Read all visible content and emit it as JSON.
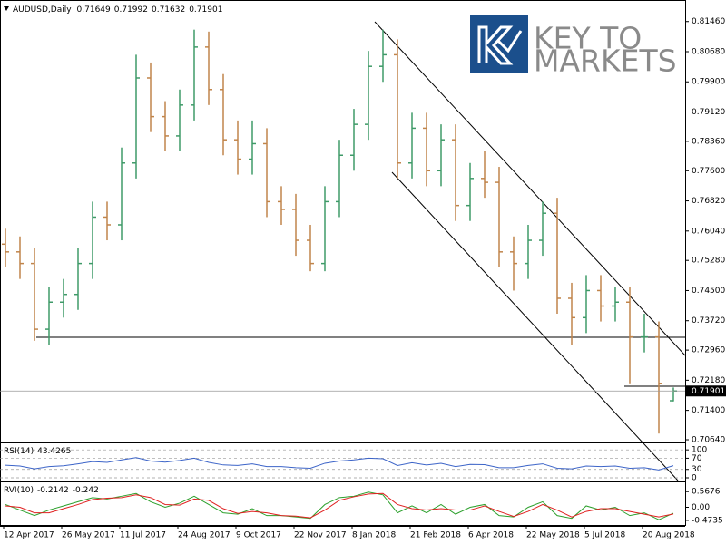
{
  "chart_data": {
    "type": "ohlc",
    "title": "AUDUSD,Daily",
    "logo_text": [
      "KEY TO",
      "MARKETS"
    ],
    "categories": [
      "12 Apr 2017",
      null,
      null,
      null,
      "26 May 2017",
      null,
      null,
      null,
      "11 Jul 2017",
      null,
      null,
      null,
      "24 Aug 2017",
      null,
      null,
      null,
      "9 Oct 2017",
      null,
      null,
      null,
      "22 Nov 2017",
      null,
      null,
      null,
      "8 Jan 2018",
      null,
      null,
      null,
      "21 Feb 2018",
      null,
      null,
      null,
      "6 Apr 2018",
      null,
      null,
      null,
      "22 May 2018",
      null,
      null,
      null,
      "5 Jul 2018",
      null,
      null,
      null,
      "20 Aug 2018",
      null,
      null
    ],
    "open": [
      0.757,
      0.755,
      0.752,
      0.735,
      0.742,
      0.744,
      0.752,
      0.764,
      0.762,
      0.778,
      0.8,
      0.79,
      0.785,
      0.793,
      0.808,
      0.797,
      0.784,
      0.779,
      0.783,
      0.768,
      0.766,
      0.758,
      0.752,
      0.768,
      0.78,
      0.788,
      0.803,
      0.806,
      0.778,
      0.787,
      0.776,
      0.784,
      0.767,
      0.774,
      0.773,
      0.755,
      0.752,
      0.758,
      0.765,
      0.743,
      0.738,
      0.745,
      0.741,
      0.742,
      0.733,
      0.733,
      0.71649
    ],
    "high": [
      0.761,
      0.759,
      0.756,
      0.746,
      0.748,
      0.756,
      0.768,
      0.768,
      0.782,
      0.806,
      0.804,
      0.794,
      0.797,
      0.8125,
      0.812,
      0.801,
      0.789,
      0.789,
      0.787,
      0.772,
      0.77,
      0.762,
      0.772,
      0.784,
      0.792,
      0.807,
      0.8125,
      0.81,
      0.791,
      0.791,
      0.788,
      0.788,
      0.778,
      0.781,
      0.777,
      0.759,
      0.762,
      0.768,
      0.769,
      0.747,
      0.749,
      0.749,
      0.746,
      0.746,
      0.739,
      0.737,
      0.71992
    ],
    "low": [
      0.751,
      0.748,
      0.732,
      0.731,
      0.738,
      0.74,
      0.748,
      0.758,
      0.758,
      0.774,
      0.786,
      0.781,
      0.781,
      0.789,
      0.793,
      0.78,
      0.775,
      0.775,
      0.764,
      0.762,
      0.754,
      0.75,
      0.75,
      0.764,
      0.776,
      0.784,
      0.799,
      0.774,
      0.774,
      0.772,
      0.772,
      0.763,
      0.763,
      0.769,
      0.751,
      0.745,
      0.748,
      0.754,
      0.739,
      0.731,
      0.734,
      0.737,
      0.737,
      0.721,
      0.729,
      0.708,
      0.71632
    ],
    "close": [
      0.755,
      0.752,
      0.735,
      0.742,
      0.744,
      0.752,
      0.764,
      0.762,
      0.778,
      0.8,
      0.79,
      0.785,
      0.793,
      0.808,
      0.797,
      0.784,
      0.779,
      0.783,
      0.768,
      0.766,
      0.758,
      0.752,
      0.768,
      0.78,
      0.788,
      0.803,
      0.806,
      0.778,
      0.787,
      0.776,
      0.784,
      0.767,
      0.774,
      0.773,
      0.755,
      0.752,
      0.758,
      0.765,
      0.743,
      0.738,
      0.745,
      0.741,
      0.742,
      0.733,
      0.733,
      0.721,
      0.71901
    ],
    "up_color": "#3f9a68",
    "down_color": "#c0844a",
    "ylim": [
      0.7057,
      0.8197
    ],
    "yticks": [
      {
        "value": 0.8146,
        "label": "0.81460"
      },
      {
        "value": 0.8068,
        "label": "0.80680"
      },
      {
        "value": 0.799,
        "label": "0.79900"
      },
      {
        "value": 0.7912,
        "label": "0.79120"
      },
      {
        "value": 0.7836,
        "label": "0.78360"
      },
      {
        "value": 0.776,
        "label": "0.77600"
      },
      {
        "value": 0.7682,
        "label": "0.76820"
      },
      {
        "value": 0.7604,
        "label": "0.76040"
      },
      {
        "value": 0.7528,
        "label": "0.75280"
      },
      {
        "value": 0.745,
        "label": "0.74500"
      },
      {
        "value": 0.7372,
        "label": "0.73720"
      },
      {
        "value": 0.7296,
        "label": "0.72960"
      },
      {
        "value": 0.7218,
        "label": "0.72180"
      },
      {
        "value": 0.714,
        "label": "0.71400"
      },
      {
        "value": 0.7064,
        "label": "0.70640"
      }
    ],
    "indicators": [
      {
        "name": "RSI(14)",
        "type": "line",
        "ylim": [
          -13,
          120
        ],
        "yticks": [
          100,
          70,
          30,
          0
        ],
        "grid": true,
        "series": [
          {
            "color": "#3c64c8",
            "values": [
              45,
              42,
              32,
              40,
              43,
              50,
              58,
              55,
              64,
              72,
              60,
              56,
              62,
              70,
              55,
              46,
              44,
              50,
              40,
              40,
              36,
              34,
              52,
              60,
              64,
              70,
              68,
              44,
              54,
              46,
              52,
              40,
              48,
              47,
              36,
              36,
              44,
              50,
              34,
              32,
              42,
              40,
              42,
              34,
              36,
              28,
              43.4265
            ]
          }
        ]
      },
      {
        "name": "RVI(10)",
        "type": "line",
        "ylim": [
          -0.64,
          0.87
        ],
        "yticks": [
          0.5676,
          {
            "value": 0,
            "label": "0.00"
          },
          -0.4735
        ],
        "grid": false,
        "series": [
          {
            "color": "#2ca02c",
            "values": [
              0.1,
              -0.1,
              -0.3,
              -0.1,
              0.05,
              0.2,
              0.35,
              0.3,
              0.4,
              0.5,
              0.2,
              0.0,
              0.15,
              0.4,
              0.1,
              -0.2,
              -0.25,
              -0.05,
              -0.3,
              -0.3,
              -0.35,
              -0.4,
              0.1,
              0.35,
              0.4,
              0.55,
              0.45,
              -0.2,
              0.05,
              -0.2,
              0.1,
              -0.25,
              0.0,
              0.1,
              -0.3,
              -0.35,
              0.0,
              0.2,
              -0.3,
              -0.4,
              0.05,
              -0.1,
              0.0,
              -0.3,
              -0.2,
              -0.45,
              -0.2142
            ]
          },
          {
            "color": "#e02020",
            "values": [
              0.05,
              0.0,
              -0.2,
              -0.2,
              -0.05,
              0.1,
              0.28,
              0.33,
              0.35,
              0.45,
              0.35,
              0.1,
              0.08,
              0.3,
              0.25,
              -0.05,
              -0.22,
              -0.15,
              -0.2,
              -0.3,
              -0.32,
              -0.38,
              -0.1,
              0.25,
              0.38,
              0.48,
              0.5,
              0.1,
              -0.05,
              -0.1,
              -0.05,
              -0.1,
              -0.1,
              0.05,
              -0.15,
              -0.33,
              -0.15,
              0.1,
              -0.1,
              -0.35,
              -0.15,
              -0.05,
              -0.05,
              -0.15,
              -0.25,
              -0.35,
              -0.242
            ]
          }
        ]
      }
    ]
  }
}
